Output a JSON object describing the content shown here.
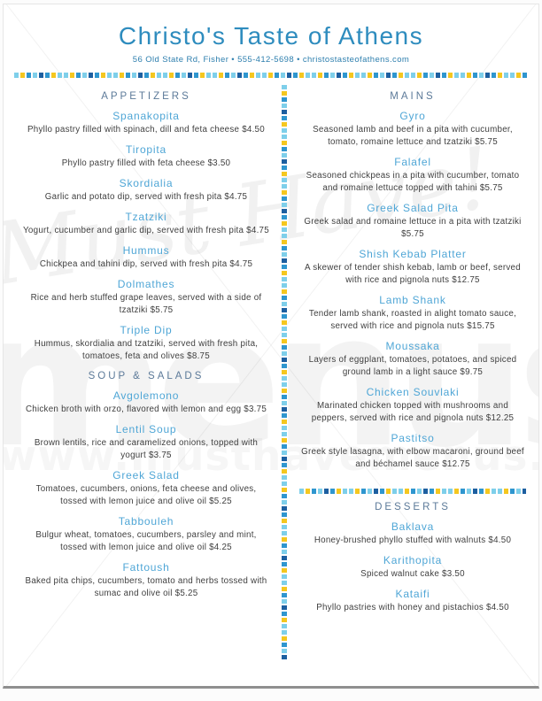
{
  "header": {
    "title": "Christo's Taste of Athens",
    "address": "56 Old State Rd, Fisher • 555-412-5698 • christostasteofathens.com"
  },
  "columns": {
    "left": [
      {
        "heading": "APPETIZERS",
        "items": [
          {
            "name": "Spanakopita",
            "description": "Phyllo pastry filled with spinach, dill and feta cheese $4.50"
          },
          {
            "name": "Tiropita",
            "description": "Phyllo pastry filled with feta cheese $3.50"
          },
          {
            "name": "Skordialia",
            "description": "Garlic and potato dip, served with fresh pita $4.75"
          },
          {
            "name": "Tzatziki",
            "description": "Yogurt, cucumber and garlic dip, served with fresh pita $4.75"
          },
          {
            "name": "Hummus",
            "description": "Chickpea and tahini dip, served with fresh pita $4.75"
          },
          {
            "name": "Dolmathes",
            "description": "Rice and herb stuffed grape leaves, served with a side of tzatziki $5.75"
          },
          {
            "name": "Triple Dip",
            "description": "Hummus, skordialia and tzatziki, served with fresh pita, tomatoes, feta and olives $8.75"
          }
        ]
      },
      {
        "heading": "SOUP & SALADS",
        "items": [
          {
            "name": "Avgolemono",
            "description": "Chicken broth with orzo, flavored with lemon and egg $3.75"
          },
          {
            "name": "Lentil Soup",
            "description": "Brown lentils, rice and caramelized onions, topped with yogurt $3.75"
          },
          {
            "name": "Greek Salad",
            "description": "Tomatoes, cucumbers, onions, feta cheese and olives, tossed with lemon juice and olive oil $5.25"
          },
          {
            "name": "Tabbouleh",
            "description": "Bulgur wheat, tomatoes, cucumbers, parsley and mint, tossed with lemon juice and olive oil $4.25"
          },
          {
            "name": "Fattoush",
            "description": "Baked pita chips, cucumbers, tomato and herbs tossed with sumac and olive oil $5.25"
          }
        ]
      }
    ],
    "right": [
      {
        "heading": "MAINS",
        "items": [
          {
            "name": "Gyro",
            "description": "Seasoned lamb and beef in a pita with cucumber, tomato, romaine lettuce and tzatziki $5.75"
          },
          {
            "name": "Falafel",
            "description": "Seasoned chickpeas in a pita with cucumber, tomato and romaine lettuce topped with tahini $5.75"
          },
          {
            "name": "Greek Salad Pita",
            "description": "Greek salad and romaine lettuce in a pita with tzatziki $5.75"
          },
          {
            "name": "Shish Kebab Platter",
            "description": "A skewer of tender shish kebab, lamb or beef, served with rice and pignola nuts $12.75"
          },
          {
            "name": "Lamb Shank",
            "description": "Tender lamb shank, roasted in alight tomato sauce, served with rice and pignola nuts $15.75"
          },
          {
            "name": "Moussaka",
            "description": "Layers of eggplant, tomatoes, potatoes, and spiced ground lamb in a light sauce $9.75"
          },
          {
            "name": "Chicken Souvlaki",
            "description": "Marinated chicken topped with mushrooms and peppers, served with rice and pignola nuts $12.25"
          },
          {
            "name": "Pastitso",
            "description": "Greek style lasagna, with elbow macaroni, ground beef and béchamel sauce $12.75"
          }
        ]
      },
      {
        "heading": "DESSERTS",
        "divider_before": true,
        "items": [
          {
            "name": "Baklava",
            "description": "Honey-brushed phyllo stuffed with walnuts $4.50"
          },
          {
            "name": "Karithopita",
            "description": "Spiced walnut cake $3.50"
          },
          {
            "name": "Kataifi",
            "description": "Phyllo pastries with honey and pistachios $4.50"
          }
        ]
      }
    ]
  },
  "watermark": {
    "script_text": "Must Have!",
    "block_text": "menus",
    "url_text": "www.musthavemenus.com"
  },
  "colors": {
    "title_blue": "#2e8cbe",
    "address_blue": "#2e7fae",
    "item_blue": "#4fa6d6",
    "heading_slate": "#5c7a99",
    "text_dark": "#3f3f3f",
    "sq_lightblue": "#7ecfea",
    "sq_yellow": "#f5c71f",
    "sq_midblue": "#2f96cf",
    "sq_navy": "#1d5fa0"
  }
}
